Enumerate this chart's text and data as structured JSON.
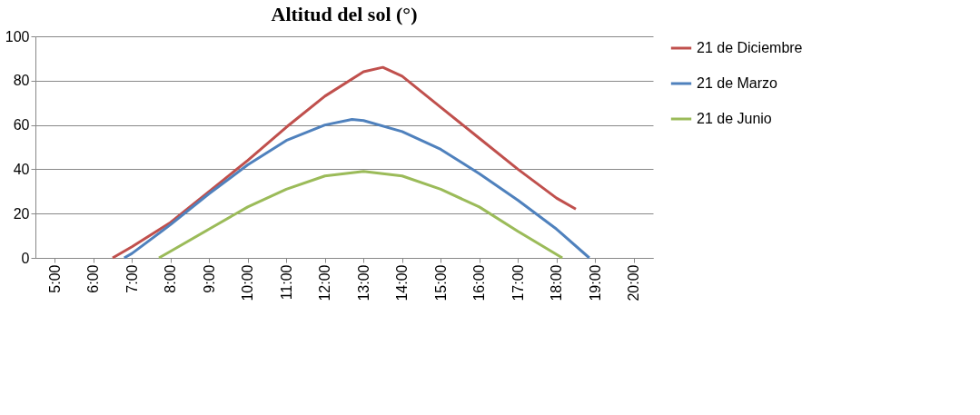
{
  "chart_data": {
    "type": "line",
    "title": "Altitud del sol (°)",
    "xlim": [
      4.5,
      20.5
    ],
    "xticks": [
      {
        "value": 5,
        "label": "5:00"
      },
      {
        "value": 6,
        "label": "6:00"
      },
      {
        "value": 7,
        "label": "7:00"
      },
      {
        "value": 8,
        "label": "8:00"
      },
      {
        "value": 9,
        "label": "9:00"
      },
      {
        "value": 10,
        "label": "10:00"
      },
      {
        "value": 11,
        "label": "11:00"
      },
      {
        "value": 12,
        "label": "12:00"
      },
      {
        "value": 13,
        "label": "13:00"
      },
      {
        "value": 14,
        "label": "14:00"
      },
      {
        "value": 15,
        "label": "15:00"
      },
      {
        "value": 16,
        "label": "16:00"
      },
      {
        "value": 17,
        "label": "17:00"
      },
      {
        "value": 18,
        "label": "18:00"
      },
      {
        "value": 19,
        "label": "19:00"
      },
      {
        "value": 20,
        "label": "20:00"
      }
    ],
    "ylim": [
      0,
      100
    ],
    "yticks": [
      0,
      20,
      40,
      60,
      80,
      100
    ],
    "grid": "y",
    "legend": "right",
    "marker": "none",
    "line_style": "solid",
    "series": [
      {
        "name": "21 de Diciembre",
        "color": "#c0504d",
        "x": [
          6.5,
          7,
          8,
          9,
          10,
          11,
          12,
          13,
          13.5,
          14,
          15,
          16,
          17,
          18,
          18.5
        ],
        "values": [
          0,
          5,
          16,
          30,
          44,
          59,
          73,
          84,
          86,
          82,
          68,
          54,
          40,
          27,
          22
        ]
      },
      {
        "name": "21 de Marzo",
        "color": "#4f81bd",
        "x": [
          6.8,
          7,
          8,
          9,
          10,
          11,
          12,
          12.7,
          13,
          14,
          15,
          16,
          17,
          18,
          18.85
        ],
        "values": [
          0,
          2,
          15,
          29,
          42,
          53,
          60,
          62.5,
          62,
          57,
          49,
          38,
          26,
          13,
          0
        ]
      },
      {
        "name": "21 de Junio",
        "color": "#9bbb59",
        "x": [
          7.7,
          8,
          9,
          10,
          11,
          12,
          13,
          14,
          15,
          16,
          17,
          18.15
        ],
        "values": [
          0,
          3,
          13,
          23,
          31,
          37,
          39,
          37,
          31,
          23,
          12,
          0
        ]
      }
    ]
  }
}
